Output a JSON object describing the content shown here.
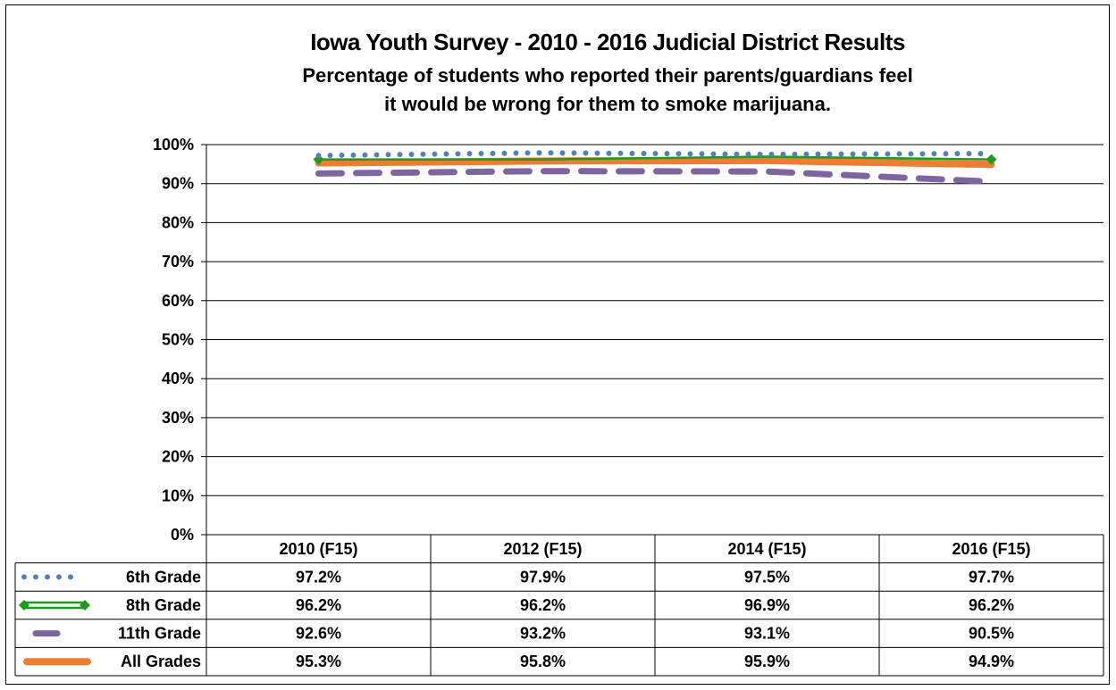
{
  "chart_data": {
    "type": "line",
    "title": "Iowa Youth Survey - 2010 - 2016 Judicial District Results",
    "subtitle_line1": "Percentage of students who reported their parents/guardians feel",
    "subtitle_line2": "it would be wrong for them to smoke marijuana.",
    "categories": [
      "2010 (F15)",
      "2012 (F15)",
      "2014 (F15)",
      "2016 (F15)"
    ],
    "ylim": [
      0,
      100
    ],
    "yticks": [
      "0%",
      "10%",
      "20%",
      "30%",
      "40%",
      "50%",
      "60%",
      "70%",
      "80%",
      "90%",
      "100%"
    ],
    "grid": true,
    "legend": "data-table",
    "series": [
      {
        "name": "6th Grade",
        "values": [
          97.2,
          97.9,
          97.5,
          97.7
        ],
        "labels": [
          "97.2%",
          "97.9%",
          "97.5%",
          "97.7%"
        ],
        "color": "#4F81BD",
        "style": "dotted"
      },
      {
        "name": "8th Grade",
        "values": [
          96.2,
          96.2,
          96.9,
          96.2
        ],
        "labels": [
          "96.2%",
          "96.2%",
          "96.9%",
          "96.2%"
        ],
        "color": "#1E9A1E",
        "style": "diamond-ends"
      },
      {
        "name": "11th Grade",
        "values": [
          92.6,
          93.2,
          93.1,
          90.5
        ],
        "labels": [
          "92.6%",
          "93.2%",
          "93.1%",
          "90.5%"
        ],
        "color": "#8064A2",
        "style": "dashed"
      },
      {
        "name": "All Grades",
        "values": [
          95.3,
          95.8,
          95.9,
          94.9
        ],
        "labels": [
          "95.3%",
          "95.8%",
          "95.9%",
          "94.9%"
        ],
        "color": "#ED7D31",
        "style": "solid"
      }
    ]
  }
}
